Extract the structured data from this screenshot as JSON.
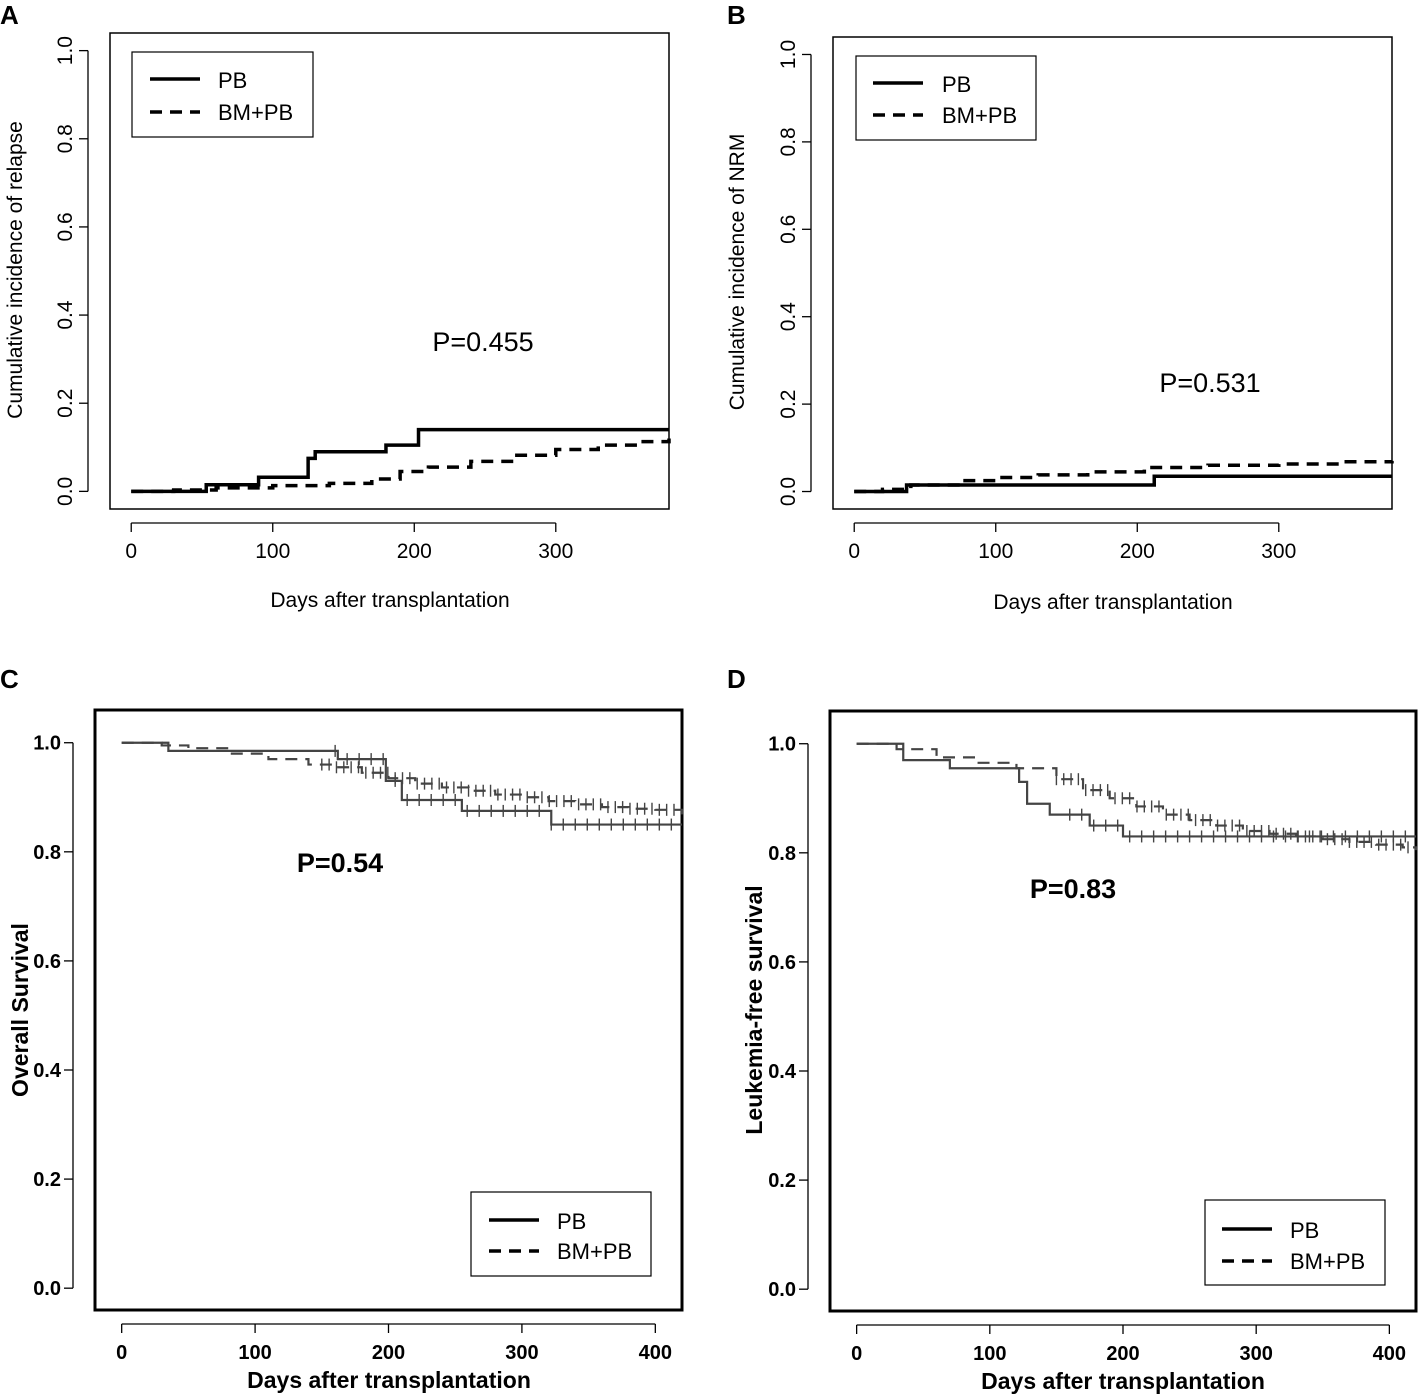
{
  "figure": {
    "panels": [
      "A",
      "B",
      "C",
      "D"
    ],
    "series_names": [
      "PB",
      "BM+PB"
    ]
  },
  "chart_data": [
    {
      "panel": "A",
      "type": "line",
      "step": true,
      "ylabel": "Cumulative incidence of relapse",
      "xlabel": "Days after transplantation",
      "xlim": [
        -15,
        380
      ],
      "ylim": [
        -0.04,
        1.04
      ],
      "xticks": [
        0,
        100,
        200,
        300
      ],
      "yticks": [
        0.0,
        0.2,
        0.4,
        0.6,
        0.8,
        1.0
      ],
      "ytick_labels": [
        "0.0",
        "0.2",
        "0.4",
        "0.6",
        "0.8",
        "1.0"
      ],
      "annotation": "P=0.455",
      "legend": [
        "PB",
        "BM+PB"
      ],
      "legend_position": "top-left",
      "series": [
        {
          "name": "PB",
          "style": "solid",
          "x": [
            0,
            53,
            90,
            125,
            130,
            180,
            203,
            380
          ],
          "y": [
            0.0,
            0.015,
            0.032,
            0.075,
            0.09,
            0.105,
            0.14,
            0.14
          ]
        },
        {
          "name": "BM+PB",
          "style": "dashed",
          "x": [
            0,
            30,
            60,
            100,
            140,
            170,
            190,
            210,
            240,
            270,
            300,
            330,
            360,
            380
          ],
          "y": [
            0.0,
            0.003,
            0.008,
            0.013,
            0.018,
            0.028,
            0.045,
            0.055,
            0.068,
            0.082,
            0.095,
            0.105,
            0.113,
            0.12
          ]
        }
      ]
    },
    {
      "panel": "B",
      "type": "line",
      "step": true,
      "ylabel": "Cumulative incidence of NRM",
      "xlabel": "Days after transplantation",
      "xlim": [
        -15,
        380
      ],
      "ylim": [
        -0.04,
        1.04
      ],
      "xticks": [
        0,
        100,
        200,
        300
      ],
      "yticks": [
        0.0,
        0.2,
        0.4,
        0.6,
        0.8,
        1.0
      ],
      "ytick_labels": [
        "0.0",
        "0.2",
        "0.4",
        "0.6",
        "0.8",
        "1.0"
      ],
      "annotation": "P=0.531",
      "legend": [
        "PB",
        "BM+PB"
      ],
      "legend_position": "top-left",
      "series": [
        {
          "name": "PB",
          "style": "solid",
          "x": [
            0,
            37,
            212,
            380
          ],
          "y": [
            0.0,
            0.015,
            0.035,
            0.035
          ]
        },
        {
          "name": "BM+PB",
          "style": "dashed",
          "x": [
            0,
            20,
            40,
            75,
            100,
            130,
            165,
            205,
            250,
            300,
            345,
            380
          ],
          "y": [
            0.0,
            0.005,
            0.015,
            0.025,
            0.032,
            0.038,
            0.045,
            0.055,
            0.06,
            0.063,
            0.068,
            0.07
          ]
        }
      ]
    },
    {
      "panel": "C",
      "type": "line",
      "step": true,
      "ylabel": "Overall Survival",
      "xlabel": "Days after transplantation",
      "xlim": [
        -20,
        420
      ],
      "ylim": [
        -0.04,
        1.06
      ],
      "xticks": [
        0,
        100,
        200,
        300,
        400
      ],
      "yticks": [
        0.0,
        0.2,
        0.4,
        0.6,
        0.8,
        1.0
      ],
      "ytick_labels": [
        "0.0",
        "0.2",
        "0.4",
        "0.6",
        "0.8",
        "1.0"
      ],
      "annotation": "P=0.54",
      "legend": [
        "PB",
        "BM+PB"
      ],
      "legend_position": "bottom-right",
      "censor_ticks": true,
      "series": [
        {
          "name": "PB",
          "style": "solid",
          "x": [
            0,
            35,
            162,
            198,
            210,
            255,
            322,
            420
          ],
          "y": [
            1.0,
            0.985,
            0.97,
            0.93,
            0.895,
            0.875,
            0.85,
            0.85
          ]
        },
        {
          "name": "BM+PB",
          "style": "dashed",
          "x": [
            0,
            30,
            50,
            80,
            110,
            140,
            160,
            180,
            200,
            220,
            240,
            260,
            280,
            300,
            320,
            340,
            360,
            380,
            400,
            420
          ],
          "y": [
            1.0,
            0.995,
            0.99,
            0.98,
            0.97,
            0.96,
            0.955,
            0.945,
            0.935,
            0.925,
            0.918,
            0.912,
            0.905,
            0.9,
            0.893,
            0.887,
            0.882,
            0.879,
            0.877,
            0.865
          ]
        }
      ]
    },
    {
      "panel": "D",
      "type": "line",
      "step": true,
      "ylabel": "Leukemia-free survival",
      "xlabel": "Days after transplantation",
      "xlim": [
        -20,
        420
      ],
      "ylim": [
        -0.04,
        1.06
      ],
      "xticks": [
        0,
        100,
        200,
        300,
        400
      ],
      "yticks": [
        0.0,
        0.2,
        0.4,
        0.6,
        0.8,
        1.0
      ],
      "ytick_labels": [
        "0.0",
        "0.2",
        "0.4",
        "0.6",
        "0.8",
        "1.0"
      ],
      "annotation": "P=0.83",
      "legend": [
        "PB",
        "BM+PB"
      ],
      "legend_position": "bottom-right",
      "censor_ticks": true,
      "series": [
        {
          "name": "PB",
          "style": "solid",
          "x": [
            0,
            35,
            70,
            122,
            128,
            145,
            175,
            200,
            420
          ],
          "y": [
            1.0,
            0.97,
            0.955,
            0.93,
            0.89,
            0.87,
            0.85,
            0.83,
            0.83
          ]
        },
        {
          "name": "BM+PB",
          "style": "dashed",
          "x": [
            0,
            30,
            60,
            90,
            120,
            150,
            170,
            190,
            210,
            230,
            250,
            270,
            290,
            310,
            330,
            350,
            370,
            390,
            410,
            420
          ],
          "y": [
            1.0,
            0.99,
            0.975,
            0.965,
            0.955,
            0.935,
            0.915,
            0.9,
            0.885,
            0.87,
            0.86,
            0.85,
            0.84,
            0.835,
            0.83,
            0.825,
            0.82,
            0.815,
            0.81,
            0.805
          ]
        }
      ]
    }
  ]
}
